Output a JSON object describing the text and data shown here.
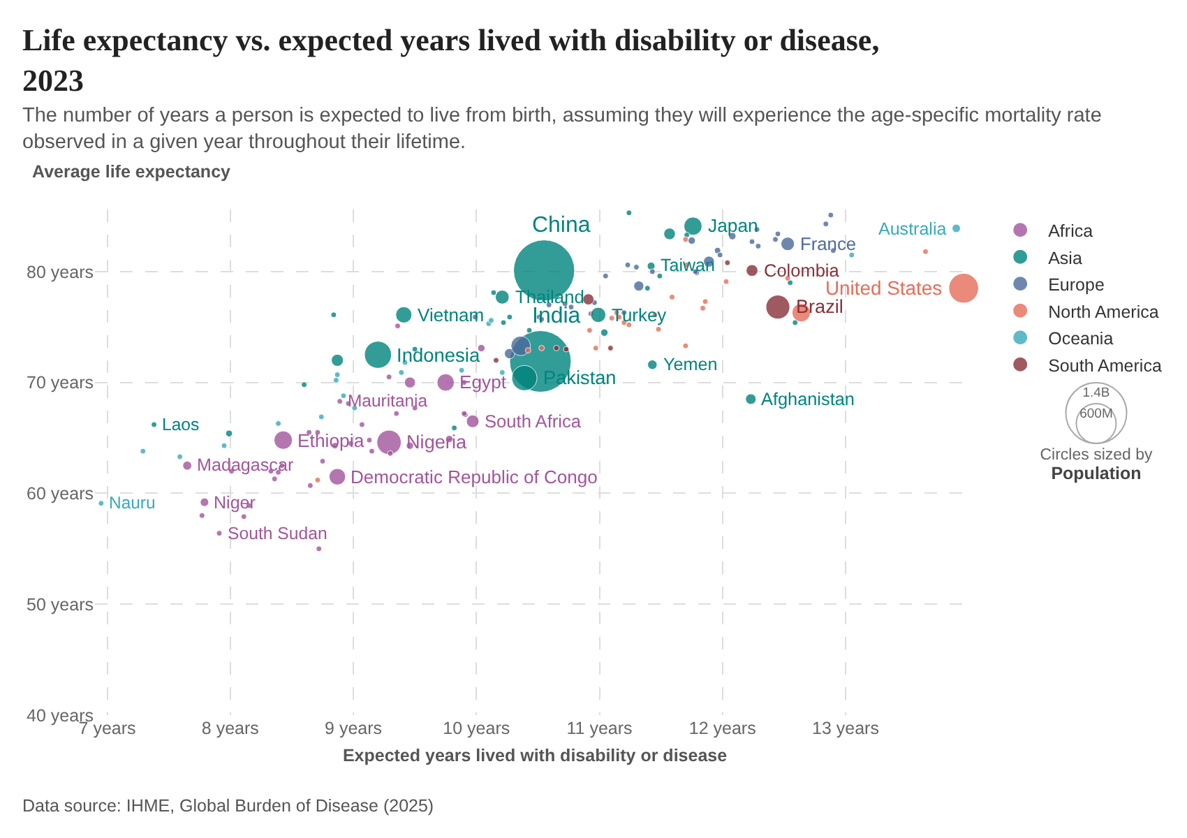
{
  "chart_data": {
    "type": "bubble",
    "title": "Life expectancy vs. expected years lived with disability or disease, 2023",
    "subtitle": "The number of years a person is expected to live from birth, assuming they will experience the age-specific mortality rate observed in a given year throughout their lifetime.",
    "xlabel": "Expected years lived with disability or disease",
    "ylabel": "Average life expectancy",
    "xlim": [
      6.9,
      14.05
    ],
    "ylim": [
      40,
      85.6
    ],
    "xticks": [
      {
        "value": 7,
        "label": "7 years"
      },
      {
        "value": 8,
        "label": "8 years"
      },
      {
        "value": 9,
        "label": "9 years"
      },
      {
        "value": 10,
        "label": "10 years"
      },
      {
        "value": 11,
        "label": "11 years"
      },
      {
        "value": 12,
        "label": "12 years"
      },
      {
        "value": 13,
        "label": "13 years"
      }
    ],
    "yticks": [
      {
        "value": 40,
        "label": "40 years"
      },
      {
        "value": 50,
        "label": "50 years"
      },
      {
        "value": 60,
        "label": "60 years"
      },
      {
        "value": 70,
        "label": "70 years"
      },
      {
        "value": 80,
        "label": "80 years"
      }
    ],
    "grid": true,
    "legend": "right",
    "marker": "circle",
    "size_legend": [
      {
        "value": 1400,
        "label": "1.4B"
      },
      {
        "value": 600,
        "label": "600M"
      }
    ],
    "series": [
      {
        "name": "Africa",
        "color": "#a2559c",
        "x": [
          9.75,
          9.97,
          8.89,
          8.43,
          9.29,
          8.87,
          7.65,
          7.79,
          7.91,
          9.36,
          9.29,
          9.46,
          8.96,
          8.01,
          8.33,
          8.36,
          8.39,
          8.42,
          8.65,
          8.75,
          8.85,
          8.98,
          9.07,
          9.13,
          9.15,
          9.3,
          8.64,
          8.71,
          9.35,
          9.46,
          7.77,
          8.11,
          8.15,
          8.72,
          9.5,
          9.78,
          9.91,
          10.93,
          9.9,
          9.9,
          10.04
        ],
        "values": [
          70.0,
          66.5,
          68.3,
          64.8,
          64.6,
          61.5,
          62.5,
          59.2,
          56.4,
          75.1,
          70.5,
          70.0,
          68.1,
          62.0,
          62.0,
          61.3,
          61.9,
          62.5,
          60.7,
          62.9,
          64.3,
          64.5,
          66.2,
          64.8,
          63.8,
          63.6,
          65.5,
          65.5,
          67.2,
          64.3,
          58.0,
          57.9,
          58.9,
          55.0,
          67.7,
          64.9,
          67.1,
          76.2,
          70.0,
          67.2,
          73.1
        ],
        "sizes": [
          112,
          60,
          5,
          127,
          224,
          102,
          30,
          27,
          11,
          5,
          5,
          45,
          5,
          5,
          10,
          10,
          5,
          5,
          5,
          5,
          15,
          5,
          5,
          5,
          5,
          10,
          5,
          5,
          5,
          20,
          5,
          5,
          5,
          5,
          5,
          20,
          5,
          5,
          5,
          5,
          20
        ]
      },
      {
        "name": "Asia",
        "color": "#00847e",
        "x": [
          10.55,
          10.52,
          10.39,
          10.21,
          10.99,
          9.41,
          9.2,
          7.38,
          11.43,
          12.23,
          11.76,
          11.42,
          8.84,
          8.87,
          8.6,
          9.5,
          7.99,
          9.82,
          11.24,
          10.14,
          10.22,
          10.27,
          10.43,
          11.04,
          11.39,
          11.57,
          11.49,
          11.71,
          12.55,
          12.59
        ],
        "values": [
          80.1,
          71.9,
          70.4,
          77.7,
          76.1,
          76.1,
          72.5,
          66.2,
          71.6,
          68.5,
          84.1,
          80.5,
          76.1,
          72.0,
          69.8,
          73.0,
          65.4,
          65.9,
          85.3,
          78.1,
          75.4,
          75.9,
          74.7,
          74.5,
          78.5,
          83.4,
          79.6,
          83.3,
          79.0,
          75.4
        ],
        "sizes": [
          1410,
          1430,
          240,
          72,
          86,
          99,
          277,
          8,
          34,
          42,
          124,
          23,
          5,
          55,
          5,
          5,
          17,
          5,
          5,
          5,
          5,
          5,
          5,
          20,
          5,
          51,
          5,
          10,
          5,
          5
        ]
      },
      {
        "name": "Europe",
        "color": "#4c6a9c",
        "x": [
          12.53,
          9.99,
          10.51,
          10.53,
          10.59,
          10.72,
          10.77,
          10.96,
          11.2,
          11.05,
          11.23,
          11.3,
          11.43,
          11.32,
          11.79,
          11.75,
          12.08,
          12.28,
          12.45,
          12.43,
          12.24,
          12.29,
          12.88,
          12.84,
          12.9,
          11.96,
          11.98,
          11.89,
          11.78,
          10.27,
          10.36
        ],
        "values": [
          82.5,
          75.9,
          75.9,
          75.7,
          77.0,
          77.1,
          76.8,
          77.2,
          76.3,
          79.6,
          80.6,
          80.4,
          80.0,
          78.7,
          79.9,
          82.8,
          83.2,
          83.8,
          83.4,
          82.9,
          82.7,
          82.3,
          85.1,
          84.3,
          81.9,
          81.9,
          81.5,
          80.9,
          80.0,
          72.6,
          73.3
        ],
        "sizes": [
          68,
          5,
          5,
          5,
          5,
          5,
          5,
          5,
          5,
          5,
          5,
          5,
          5,
          38,
          5,
          20,
          20,
          5,
          5,
          5,
          5,
          5,
          5,
          5,
          5,
          15,
          5,
          45,
          5,
          40,
          144
        ]
      },
      {
        "name": "North America",
        "color": "#e56e5a",
        "x": [
          13.96,
          12.64,
          8.71,
          11.1,
          11.16,
          11.14,
          11.2,
          11.24,
          10.97,
          10.92,
          11.59,
          11.45,
          11.48,
          11.71,
          11.7,
          12.03,
          11.86,
          11.84,
          11.7,
          12.53,
          13.65,
          10.42,
          10.53
        ],
        "values": [
          78.5,
          76.3,
          61.2,
          75.8,
          75.9,
          76.3,
          75.4,
          75.2,
          73.1,
          74.7,
          77.7,
          76.1,
          74.8,
          80.6,
          82.9,
          79.1,
          77.3,
          76.7,
          73.3,
          79.4,
          81.8,
          72.9,
          73.1
        ],
        "sizes": [
          335,
          128,
          5,
          5,
          5,
          5,
          5,
          5,
          5,
          5,
          5,
          5,
          5,
          5,
          5,
          5,
          5,
          5,
          5,
          5,
          5,
          5,
          5
        ]
      },
      {
        "name": "Oceania",
        "color": "#38aaba",
        "x": [
          13.9,
          6.95,
          8.87,
          8.86,
          9.42,
          9.39,
          8.92,
          9.01,
          8.74,
          8.39,
          7.95,
          7.29,
          7.59,
          10.1,
          10.12,
          9.88,
          10.21,
          13.05
        ],
        "values": [
          83.9,
          59.1,
          70.7,
          70.2,
          71.8,
          70.9,
          68.8,
          67.7,
          66.9,
          66.3,
          64.3,
          63.8,
          63.3,
          75.3,
          75.6,
          71.1,
          70.9,
          81.5
        ],
        "sizes": [
          26,
          5,
          5,
          5,
          5,
          5,
          5,
          5,
          5,
          5,
          5,
          5,
          5,
          5,
          5,
          5,
          5,
          5
        ]
      },
      {
        "name": "South America",
        "color": "#883039",
        "x": [
          12.24,
          12.45,
          10.91,
          11.09,
          10.65,
          10.73,
          10.16,
          12.04
        ],
        "values": [
          80.1,
          76.8,
          77.5,
          73.1,
          73.1,
          73.0,
          72.0,
          80.8
        ],
        "sizes": [
          52,
          216,
          46,
          5,
          5,
          5,
          5,
          5
        ]
      }
    ],
    "annotations": [
      "Circles sized by",
      "Population",
      "Data source: IHME, Global Burden of Disease (2025)",
      {
        "text": "China",
        "x": 10.55,
        "y": 80.1
      },
      {
        "text": "India",
        "x": 10.52,
        "y": 71.9
      },
      {
        "text": "Pakistan",
        "x": 10.39,
        "y": 70.4
      },
      {
        "text": "Thailand",
        "x": 10.21,
        "y": 77.7
      },
      {
        "text": "Turkey",
        "x": 10.99,
        "y": 76.1
      },
      {
        "text": "Vietnam",
        "x": 9.41,
        "y": 76.1
      },
      {
        "text": "Indonesia",
        "x": 9.2,
        "y": 72.5
      },
      {
        "text": "Laos",
        "x": 7.38,
        "y": 66.2
      },
      {
        "text": "Yemen",
        "x": 11.43,
        "y": 71.6
      },
      {
        "text": "Afghanistan",
        "x": 12.23,
        "y": 68.5
      },
      {
        "text": "Japan",
        "x": 11.76,
        "y": 84.1
      },
      {
        "text": "Taiwan",
        "x": 11.42,
        "y": 80.5
      },
      {
        "text": "France",
        "x": 12.53,
        "y": 82.5
      },
      {
        "text": "Colombia",
        "x": 12.24,
        "y": 80.1
      },
      {
        "text": "Brazil",
        "x": 12.45,
        "y": 76.8
      },
      {
        "text": "United States",
        "x": 13.96,
        "y": 78.5
      },
      {
        "text": "Australia",
        "x": 13.9,
        "y": 83.9
      },
      {
        "text": "Nauru",
        "x": 6.95,
        "y": 59.1
      },
      {
        "text": "Egypt",
        "x": 9.75,
        "y": 70.0
      },
      {
        "text": "South Africa",
        "x": 9.97,
        "y": 66.5
      },
      {
        "text": "Mauritania",
        "x": 8.89,
        "y": 68.3
      },
      {
        "text": "Ethiopia",
        "x": 8.43,
        "y": 64.8
      },
      {
        "text": "Nigeria",
        "x": 9.29,
        "y": 64.6
      },
      {
        "text": "Democratic Republic of Congo",
        "x": 8.87,
        "y": 61.5
      },
      {
        "text": "Madagascar",
        "x": 7.65,
        "y": 62.5
      },
      {
        "text": "Niger",
        "x": 7.79,
        "y": 59.2
      },
      {
        "text": "South Sudan",
        "x": 7.91,
        "y": 56.4
      }
    ]
  }
}
